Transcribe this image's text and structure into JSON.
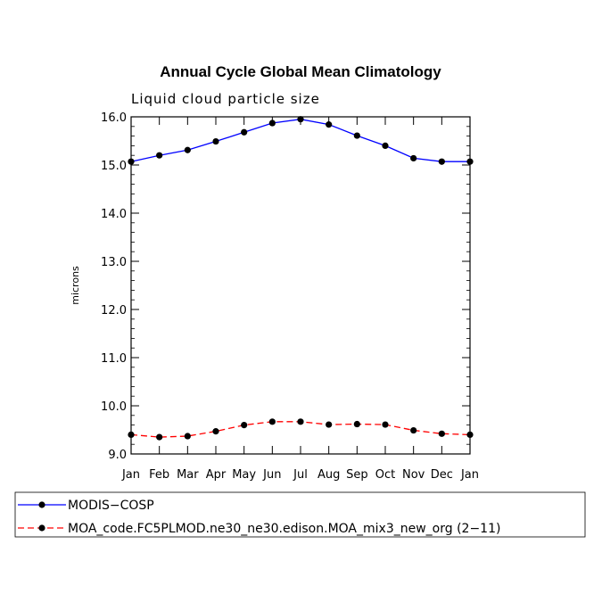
{
  "chart_data": {
    "type": "line",
    "title": "Annual Cycle Global Mean Climatology",
    "subtitle": "Liquid cloud particle size",
    "xlabel": "",
    "ylabel": "microns",
    "categories": [
      "Jan",
      "Feb",
      "Mar",
      "Apr",
      "May",
      "Jun",
      "Jul",
      "Aug",
      "Sep",
      "Oct",
      "Nov",
      "Dec",
      "Jan"
    ],
    "ylim": [
      9.0,
      16.0
    ],
    "yticks": [
      "9.0",
      "10.0",
      "11.0",
      "12.0",
      "13.0",
      "14.0",
      "15.0",
      "16.0"
    ],
    "grid": false,
    "legend_position": "bottom",
    "series": [
      {
        "name": "MODIS−COSP",
        "color": "#0000ff",
        "style": "solid",
        "values": [
          15.07,
          15.2,
          15.31,
          15.49,
          15.68,
          15.87,
          15.95,
          15.84,
          15.61,
          15.4,
          15.14,
          15.07,
          15.07
        ]
      },
      {
        "name": "MOA_code.FC5PLMOD.ne30_ne30.edison.MOA_mix3_new_org (2−11)",
        "color": "#ff0000",
        "style": "dashed",
        "values": [
          9.4,
          9.35,
          9.37,
          9.47,
          9.6,
          9.67,
          9.67,
          9.61,
          9.62,
          9.61,
          9.49,
          9.42,
          9.4
        ]
      }
    ]
  }
}
